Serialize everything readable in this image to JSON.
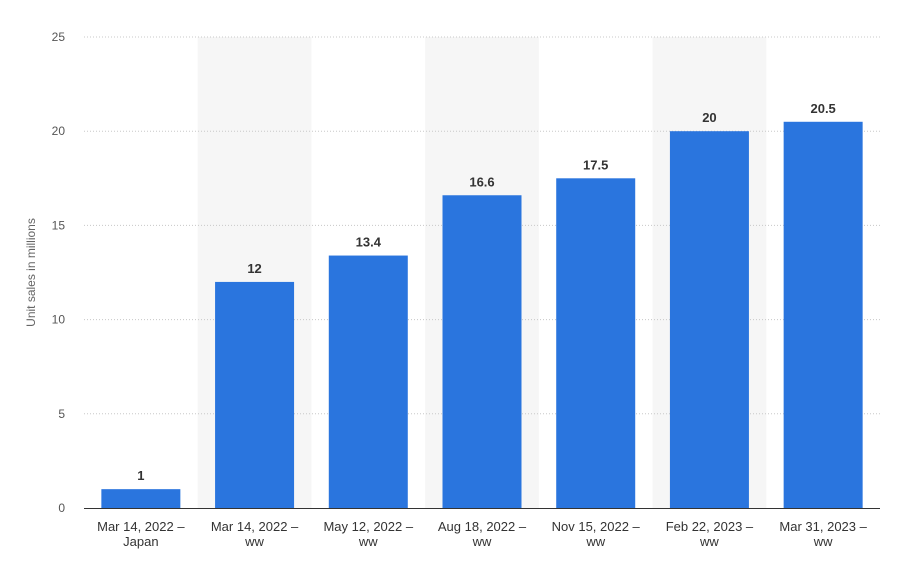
{
  "chart_data": {
    "type": "bar",
    "categories": [
      [
        "Mar 14, 2022 –",
        "Japan"
      ],
      [
        "Mar 14, 2022 –",
        "ww"
      ],
      [
        "May 12, 2022 –",
        "ww"
      ],
      [
        "Aug 18, 2022 –",
        "ww"
      ],
      [
        "Nov 15, 2022 –",
        "ww"
      ],
      [
        "Feb 22, 2023 –",
        "ww"
      ],
      [
        "Mar 31, 2023 –",
        "ww"
      ]
    ],
    "values": [
      1,
      12,
      13.4,
      16.6,
      17.5,
      20,
      20.5
    ],
    "data_labels": [
      "1",
      "12",
      "13.4",
      "16.6",
      "17.5",
      "20",
      "20.5"
    ],
    "ylabel": "Unit sales in millions",
    "ylim": [
      0,
      25
    ],
    "yticks": [
      0,
      5,
      10,
      15,
      20,
      25
    ],
    "grid": true,
    "bar_color": "#2a75de",
    "band_color": "#f6f6f6",
    "gridline_color": "#c8c8c8"
  }
}
